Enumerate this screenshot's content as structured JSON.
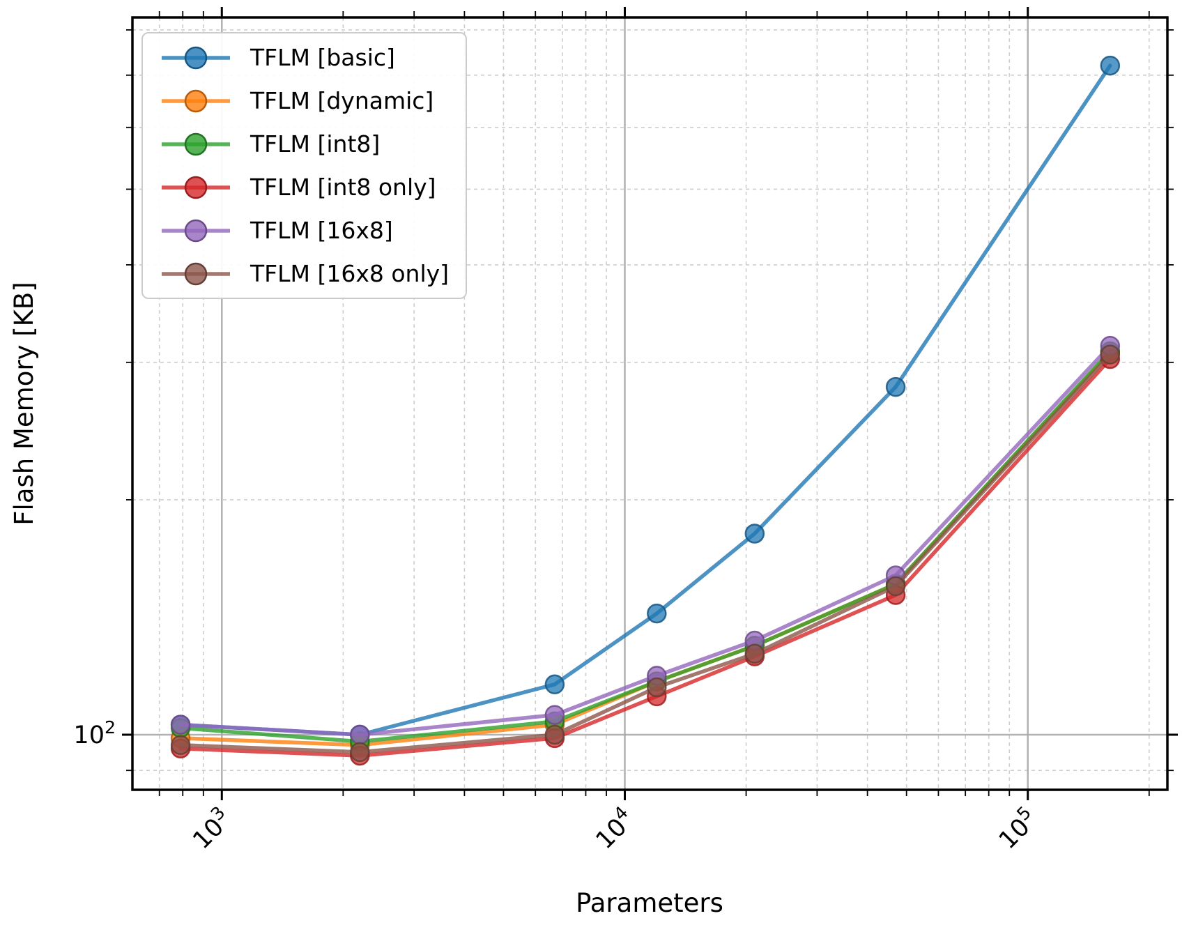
{
  "axes": {
    "xlabel": "Parameters",
    "ylabel": "Flash Memory [KB]",
    "x_major_ticks": [
      {
        "base": "10",
        "exp": "3",
        "value": 1000
      },
      {
        "base": "10",
        "exp": "4",
        "value": 10000
      },
      {
        "base": "10",
        "exp": "5",
        "value": 100000
      }
    ],
    "y_major_ticks": [
      {
        "base": "10",
        "exp": "2",
        "value": 100
      }
    ]
  },
  "chart_data": {
    "type": "line",
    "title": "",
    "xlabel": "Parameters",
    "ylabel": "Flash Memory [KB]",
    "x_scale": "log",
    "y_scale": "log",
    "xlim": [
      600,
      222000
    ],
    "ylim": [
      85,
      830
    ],
    "grid": true,
    "grid_major_color": "#a9a9a9",
    "grid_minor_color": "#c9c9c9",
    "legend_position": "upper left",
    "x": [
      790,
      2200,
      6700,
      12000,
      21000,
      47000,
      160000
    ],
    "series": [
      {
        "name": "TFLM [basic]",
        "color": "#1f77b4",
        "values": [
          103,
          100,
          116,
          143,
          181,
          279,
          720
        ]
      },
      {
        "name": "TFLM [dynamic]",
        "color": "#ff7f0e",
        "values": [
          99,
          97,
          103,
          117,
          130,
          156,
          309
        ]
      },
      {
        "name": "TFLM [int8]",
        "color": "#2ca02c",
        "values": [
          102,
          98,
          104,
          117,
          130,
          156,
          310
        ]
      },
      {
        "name": "TFLM [int8 only]",
        "color": "#d62728",
        "values": [
          96,
          94,
          99,
          112,
          126,
          151,
          303
        ]
      },
      {
        "name": "TFLM [16x8]",
        "color": "#9467bd",
        "values": [
          103,
          100,
          106,
          119,
          132,
          160,
          315
        ]
      },
      {
        "name": "TFLM [16x8 only]",
        "color": "#8c564b",
        "values": [
          97,
          95,
          100,
          115,
          127,
          155,
          307
        ]
      }
    ]
  }
}
